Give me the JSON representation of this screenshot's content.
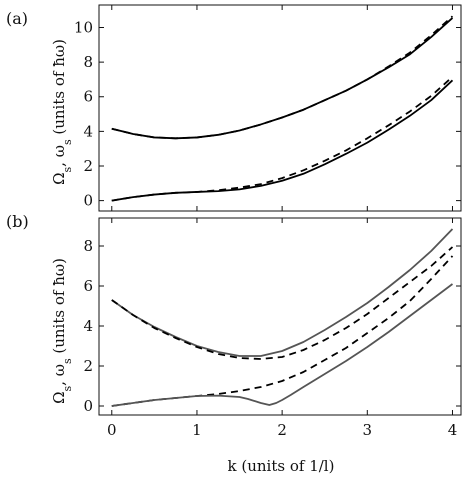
{
  "chart_data": [
    {
      "panel": "(a)",
      "type": "line",
      "xlabel": "",
      "ylabel": "Ω_s, ω_s (units of ħω)",
      "xlim": [
        -0.15,
        4.1
      ],
      "ylim": [
        -0.6,
        11.3
      ],
      "xticks": [
        0,
        1,
        2,
        3,
        4
      ],
      "yticks": [
        0,
        2,
        4,
        6,
        8,
        10
      ],
      "xticklabels": [
        "",
        "",
        "",
        "",
        ""
      ],
      "yticklabels": [
        "0",
        "2",
        "4",
        "6",
        "8",
        "10"
      ],
      "grid": false,
      "series": [
        {
          "style": "solid",
          "color": "#000000",
          "x": [
            0,
            0.25,
            0.5,
            0.75,
            1.0,
            1.25,
            1.5,
            1.75,
            2.0,
            2.25,
            2.5,
            2.75,
            3.0,
            3.25,
            3.5,
            3.75,
            4.0
          ],
          "y": [
            4.15,
            3.85,
            3.65,
            3.6,
            3.65,
            3.8,
            4.05,
            4.4,
            4.8,
            5.25,
            5.8,
            6.35,
            7.0,
            7.7,
            8.45,
            9.45,
            10.55
          ]
        },
        {
          "style": "dashed",
          "color": "#000000",
          "x": [
            0,
            0.25,
            0.5,
            0.75,
            1.0,
            1.25,
            1.5,
            1.75,
            2.0,
            2.25,
            2.5,
            2.75,
            3.0,
            3.25,
            3.5,
            3.75,
            4.0
          ],
          "y": [
            4.15,
            3.85,
            3.65,
            3.6,
            3.65,
            3.8,
            4.05,
            4.4,
            4.8,
            5.25,
            5.8,
            6.35,
            7.0,
            7.75,
            8.55,
            9.55,
            10.65
          ]
        },
        {
          "style": "solid",
          "color": "#000000",
          "x": [
            0,
            0.25,
            0.5,
            0.75,
            1.0,
            1.25,
            1.5,
            1.75,
            2.0,
            2.25,
            2.5,
            2.75,
            3.0,
            3.25,
            3.5,
            3.75,
            4.0
          ],
          "y": [
            0.0,
            0.2,
            0.35,
            0.45,
            0.5,
            0.55,
            0.65,
            0.85,
            1.15,
            1.55,
            2.1,
            2.7,
            3.35,
            4.1,
            4.9,
            5.8,
            6.95
          ]
        },
        {
          "style": "dashed",
          "color": "#000000",
          "x": [
            0,
            0.25,
            0.5,
            0.75,
            1.0,
            1.25,
            1.5,
            1.75,
            2.0,
            2.25,
            2.5,
            2.75,
            3.0,
            3.25,
            3.5,
            3.75,
            4.0
          ],
          "y": [
            0.0,
            0.2,
            0.35,
            0.45,
            0.5,
            0.6,
            0.75,
            0.95,
            1.3,
            1.75,
            2.3,
            2.9,
            3.6,
            4.35,
            5.15,
            6.05,
            7.15
          ]
        }
      ]
    },
    {
      "panel": "(b)",
      "type": "line",
      "xlabel": "k (units of 1/l)",
      "ylabel": "Ω_s, ω_s (units of ħω)",
      "xlim": [
        -0.15,
        4.1
      ],
      "ylim": [
        -0.45,
        9.4
      ],
      "xticks": [
        0,
        1,
        2,
        3,
        4
      ],
      "yticks": [
        0,
        2,
        4,
        6,
        8
      ],
      "xticklabels": [
        "0",
        "1",
        "2",
        "3",
        "4"
      ],
      "yticklabels": [
        "0",
        "2",
        "4",
        "6",
        "8"
      ],
      "grid": false,
      "series": [
        {
          "style": "solid",
          "color": "#555555",
          "x": [
            0,
            0.25,
            0.5,
            0.75,
            1.0,
            1.25,
            1.5,
            1.75,
            2.0,
            2.25,
            2.5,
            2.75,
            3.0,
            3.25,
            3.5,
            3.75,
            4.0
          ],
          "y": [
            5.3,
            4.55,
            3.95,
            3.45,
            3.0,
            2.7,
            2.5,
            2.5,
            2.75,
            3.2,
            3.8,
            4.45,
            5.15,
            5.95,
            6.8,
            7.75,
            8.85
          ]
        },
        {
          "style": "dashed",
          "color": "#000000",
          "x": [
            0,
            0.25,
            0.5,
            0.75,
            1.0,
            1.25,
            1.5,
            1.75,
            2.0,
            2.25,
            2.5,
            2.75,
            3.0,
            3.25,
            3.5,
            3.75,
            4.0
          ],
          "y": [
            5.3,
            4.55,
            3.9,
            3.4,
            2.95,
            2.6,
            2.4,
            2.35,
            2.45,
            2.8,
            3.3,
            3.9,
            4.6,
            5.4,
            6.2,
            7.0,
            7.95
          ]
        },
        {
          "style": "dashed",
          "color": "#000000",
          "x": [
            0,
            0.25,
            0.5,
            0.75,
            1.0,
            1.25,
            1.5,
            1.75,
            2.0,
            2.25,
            2.5,
            2.75,
            3.0,
            3.25,
            3.5,
            3.75,
            4.0
          ],
          "y": [
            0.0,
            0.15,
            0.3,
            0.4,
            0.5,
            0.6,
            0.75,
            0.95,
            1.25,
            1.7,
            2.3,
            2.9,
            3.65,
            4.4,
            5.25,
            6.35,
            7.5
          ]
        },
        {
          "style": "solid",
          "color": "#555555",
          "x": [
            0,
            0.25,
            0.5,
            0.75,
            1.0,
            1.25,
            1.5,
            1.6,
            1.75,
            1.85,
            1.93,
            2.0,
            2.1,
            2.25,
            2.5,
            2.75,
            3.0,
            3.25,
            3.5,
            3.75,
            4.0
          ],
          "y": [
            0.0,
            0.15,
            0.3,
            0.4,
            0.5,
            0.52,
            0.45,
            0.35,
            0.15,
            0.05,
            0.15,
            0.3,
            0.55,
            0.95,
            1.6,
            2.25,
            2.95,
            3.7,
            4.5,
            5.3,
            6.1
          ]
        }
      ]
    }
  ]
}
